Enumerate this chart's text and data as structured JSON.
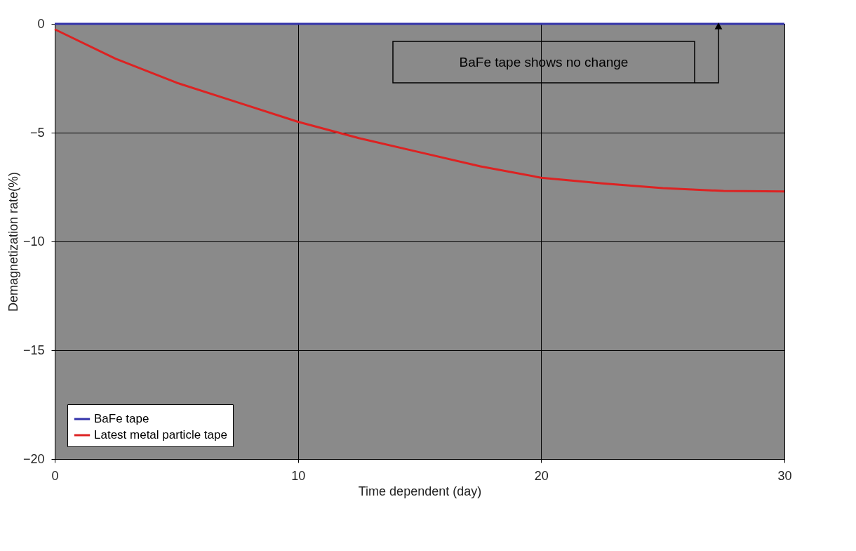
{
  "chart_data": {
    "type": "line",
    "xlabel": "Time dependent (day)",
    "ylabel": "Demagnetization rate(%)",
    "x": [
      0,
      2.5,
      5,
      7.5,
      10,
      12.5,
      15,
      17.5,
      20,
      22.5,
      25,
      27.5,
      30
    ],
    "series": [
      {
        "name": "BaFe tape",
        "color": "#3333aa",
        "values": [
          0,
          0,
          0,
          0,
          0,
          0,
          0,
          0,
          0,
          0,
          0,
          0,
          0
        ]
      },
      {
        "name": "Latest metal particle tape",
        "color": "#dd2222",
        "values": [
          -0.25,
          -1.6,
          -2.7,
          -3.6,
          -4.5,
          -5.25,
          -5.9,
          -6.55,
          -7.07,
          -7.33,
          -7.55,
          -7.68,
          -7.7
        ]
      }
    ],
    "xlim": [
      0,
      30
    ],
    "xticks": [
      0,
      10,
      20,
      30
    ],
    "ylim": [
      -20,
      0
    ],
    "yticks": [
      -20,
      -15,
      -10,
      -5,
      0
    ],
    "annotations": [
      "BaFe tape shows no change"
    ],
    "grid": true,
    "legend": "bottom left",
    "marker": "none",
    "line_style": "solid"
  }
}
